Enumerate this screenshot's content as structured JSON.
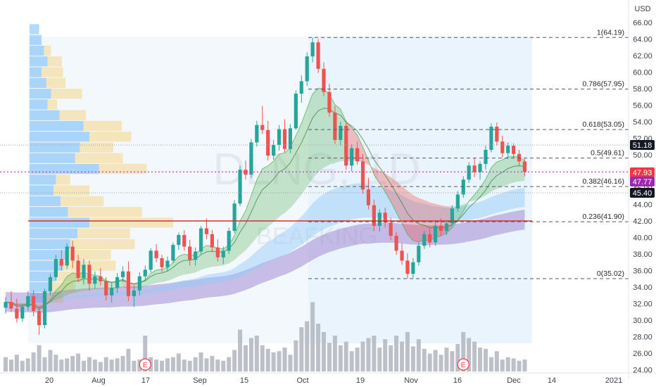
{
  "chart_data": {
    "type": "candlestick",
    "currency": "USD",
    "y_axis": {
      "range": [
        24,
        66.5
      ],
      "ticks": [
        24,
        26,
        28,
        30,
        32,
        34,
        36,
        38,
        40,
        42,
        44,
        46,
        48,
        50,
        52,
        54,
        56,
        58,
        60,
        62,
        64,
        66
      ]
    },
    "x_axis_labels": [
      "20",
      "Aug",
      "17",
      "Sep",
      "15",
      "Oct",
      "19",
      "Nov",
      "16",
      "Dec",
      "14",
      "2021"
    ],
    "price_tags": [
      {
        "value": 51.18,
        "text": "51.18",
        "color": "#131722"
      },
      {
        "value": 47.93,
        "text": "47.93",
        "color": "#f23645"
      },
      {
        "value": 47.77,
        "text": "47.77",
        "color": "#9c27b0"
      },
      {
        "value": 45.4,
        "text": "45.40",
        "color": "#131722"
      }
    ],
    "fibonacci": [
      {
        "level": "1",
        "price": 64.19,
        "label": "1(64.19)"
      },
      {
        "level": "0.786",
        "price": 57.95,
        "label": "0.786(57.95)"
      },
      {
        "level": "0.618",
        "price": 53.05,
        "label": "0.618(53.05)"
      },
      {
        "level": "0.5",
        "price": 49.61,
        "label": "0.5(49.61)"
      },
      {
        "level": "0.382",
        "price": 46.16,
        "label": "0.382(46.16)"
      },
      {
        "level": "0.236",
        "price": 41.9,
        "label": "0.236(41.90)"
      },
      {
        "level": "0",
        "price": 35.02,
        "label": "0(35.02)"
      }
    ],
    "support_line": 42.0,
    "earnings_markers": [
      {
        "label": "E",
        "index": 25
      },
      {
        "label": "E",
        "index": 82
      }
    ],
    "candles": [
      [
        31.5,
        32.8,
        30.8,
        32.2
      ],
      [
        32.2,
        33.5,
        31.0,
        31.4
      ],
      [
        31.4,
        32.6,
        29.7,
        30.2
      ],
      [
        30.2,
        32.0,
        29.8,
        31.6
      ],
      [
        31.6,
        33.5,
        31.1,
        32.9
      ],
      [
        32.9,
        33.6,
        30.5,
        31.1
      ],
      [
        31.1,
        31.6,
        28.2,
        29.4
      ],
      [
        29.4,
        33.8,
        29.0,
        33.5
      ],
      [
        33.5,
        35.6,
        33.0,
        35.2
      ],
      [
        35.2,
        37.9,
        34.8,
        37.4
      ],
      [
        37.4,
        38.5,
        36.0,
        36.6
      ],
      [
        36.6,
        39.3,
        36.2,
        38.9
      ],
      [
        38.9,
        39.6,
        36.3,
        37.2
      ],
      [
        37.2,
        37.9,
        34.6,
        35.1
      ],
      [
        35.1,
        37.4,
        34.3,
        36.7
      ],
      [
        36.7,
        37.2,
        33.6,
        34.4
      ],
      [
        34.4,
        35.9,
        33.8,
        35.3
      ],
      [
        35.3,
        36.3,
        34.2,
        34.7
      ],
      [
        34.7,
        35.2,
        32.4,
        33.0
      ],
      [
        33.0,
        34.5,
        32.1,
        33.9
      ],
      [
        33.9,
        35.7,
        33.3,
        35.2
      ],
      [
        35.2,
        36.5,
        34.6,
        35.9
      ],
      [
        35.9,
        37.1,
        32.3,
        32.9
      ],
      [
        32.9,
        34.2,
        31.6,
        33.6
      ],
      [
        33.6,
        35.8,
        33.0,
        35.3
      ],
      [
        35.3,
        36.6,
        34.7,
        36.1
      ],
      [
        36.1,
        38.7,
        35.8,
        38.4
      ],
      [
        38.4,
        39.2,
        37.0,
        37.5
      ],
      [
        37.5,
        37.9,
        35.8,
        36.4
      ],
      [
        36.4,
        37.7,
        35.9,
        37.2
      ],
      [
        37.2,
        39.4,
        36.9,
        39.1
      ],
      [
        39.1,
        40.6,
        38.5,
        40.3
      ],
      [
        40.3,
        40.9,
        38.4,
        38.9
      ],
      [
        38.9,
        39.7,
        36.6,
        37.3
      ],
      [
        37.3,
        38.8,
        36.6,
        38.3
      ],
      [
        38.3,
        41.4,
        38.0,
        41.1
      ],
      [
        41.1,
        42.3,
        39.8,
        40.4
      ],
      [
        40.4,
        40.9,
        38.2,
        38.8
      ],
      [
        38.8,
        39.8,
        37.1,
        37.6
      ],
      [
        37.6,
        38.9,
        36.8,
        38.4
      ],
      [
        38.4,
        41.2,
        38.0,
        40.8
      ],
      [
        40.8,
        44.5,
        40.5,
        44.1
      ],
      [
        44.1,
        48.7,
        43.8,
        48.2
      ],
      [
        48.2,
        49.3,
        47.0,
        47.6
      ],
      [
        47.6,
        51.9,
        47.2,
        51.5
      ],
      [
        51.5,
        54.1,
        51.0,
        53.6
      ],
      [
        53.6,
        55.9,
        52.5,
        53.0
      ],
      [
        53.0,
        54.1,
        49.3,
        49.9
      ],
      [
        49.9,
        51.8,
        49.4,
        51.2
      ],
      [
        51.2,
        53.6,
        50.5,
        53.1
      ],
      [
        53.1,
        54.3,
        50.3,
        50.7
      ],
      [
        50.7,
        53.7,
        50.2,
        53.2
      ],
      [
        53.2,
        57.8,
        53.0,
        57.4
      ],
      [
        57.4,
        59.6,
        56.3,
        58.9
      ],
      [
        58.9,
        62.4,
        58.3,
        61.9
      ],
      [
        61.9,
        64.19,
        61.2,
        63.6
      ],
      [
        63.6,
        64.0,
        59.9,
        60.4
      ],
      [
        60.4,
        61.2,
        57.1,
        57.6
      ],
      [
        57.6,
        58.6,
        54.6,
        55.1
      ],
      [
        55.1,
        55.9,
        51.3,
        51.8
      ],
      [
        51.8,
        54.0,
        51.1,
        53.5
      ],
      [
        53.5,
        54.1,
        48.2,
        48.7
      ],
      [
        48.7,
        51.3,
        48.0,
        50.8
      ],
      [
        50.8,
        51.6,
        48.8,
        49.2
      ],
      [
        49.2,
        50.1,
        45.3,
        45.8
      ],
      [
        45.8,
        47.2,
        43.4,
        43.9
      ],
      [
        43.9,
        44.6,
        40.8,
        41.4
      ],
      [
        41.4,
        43.4,
        40.7,
        43.0
      ],
      [
        43.0,
        43.6,
        41.2,
        41.8
      ],
      [
        41.8,
        42.4,
        39.7,
        40.2
      ],
      [
        40.2,
        40.7,
        37.9,
        38.4
      ],
      [
        38.4,
        39.3,
        36.7,
        37.2
      ],
      [
        37.2,
        38.1,
        35.02,
        35.6
      ],
      [
        35.6,
        37.5,
        35.1,
        37.0
      ],
      [
        37.0,
        39.4,
        36.6,
        39.0
      ],
      [
        39.0,
        40.8,
        38.6,
        40.4
      ],
      [
        40.4,
        41.2,
        38.8,
        39.4
      ],
      [
        39.4,
        41.8,
        39.0,
        41.4
      ],
      [
        41.4,
        42.3,
        40.2,
        40.8
      ],
      [
        40.8,
        42.1,
        40.3,
        41.7
      ],
      [
        41.7,
        43.9,
        41.4,
        43.5
      ],
      [
        43.5,
        45.6,
        43.1,
        45.2
      ],
      [
        45.2,
        47.4,
        44.8,
        47.0
      ],
      [
        47.0,
        49.1,
        46.6,
        48.7
      ],
      [
        48.7,
        49.6,
        47.3,
        47.9
      ],
      [
        47.9,
        49.2,
        47.0,
        48.9
      ],
      [
        48.9,
        51.1,
        48.2,
        50.6
      ],
      [
        50.6,
        53.8,
        50.3,
        53.4
      ],
      [
        53.4,
        53.9,
        51.1,
        51.6
      ],
      [
        51.6,
        52.3,
        49.7,
        50.2
      ],
      [
        50.2,
        51.5,
        49.5,
        51.1
      ],
      [
        51.1,
        51.4,
        49.6,
        50.1
      ],
      [
        50.1,
        50.6,
        48.6,
        49.2
      ],
      [
        49.2,
        49.5,
        47.4,
        47.93
      ]
    ],
    "volume_relative": [
      0.12,
      0.1,
      0.14,
      0.09,
      0.11,
      0.16,
      0.22,
      0.12,
      0.18,
      0.14,
      0.1,
      0.11,
      0.13,
      0.15,
      0.09,
      0.12,
      0.1,
      0.08,
      0.12,
      0.1,
      0.11,
      0.13,
      0.19,
      0.09,
      0.1,
      0.3,
      0.12,
      0.1,
      0.09,
      0.11,
      0.12,
      0.15,
      0.1,
      0.09,
      0.12,
      0.16,
      0.11,
      0.13,
      0.1,
      0.09,
      0.12,
      0.18,
      0.35,
      0.22,
      0.28,
      0.3,
      0.22,
      0.19,
      0.16,
      0.17,
      0.2,
      0.14,
      0.26,
      0.37,
      0.42,
      0.58,
      0.4,
      0.33,
      0.24,
      0.3,
      0.22,
      0.25,
      0.17,
      0.2,
      0.25,
      0.28,
      0.3,
      0.2,
      0.27,
      0.22,
      0.3,
      0.25,
      0.33,
      0.21,
      0.27,
      0.19,
      0.15,
      0.18,
      0.14,
      0.2,
      0.17,
      0.23,
      0.33,
      0.28,
      0.25,
      0.2,
      0.19,
      0.12,
      0.17,
      0.1,
      0.12,
      0.11,
      0.09,
      0.1
    ],
    "volume_profile": [
      {
        "y": [
          64.5,
          65.8
        ],
        "blue": 0.08,
        "yellow": 0.0
      },
      {
        "y": [
          63.2,
          64.5
        ],
        "blue": 0.1,
        "yellow": 0.0
      },
      {
        "y": [
          61.9,
          63.2
        ],
        "blue": 0.12,
        "yellow": 0.06
      },
      {
        "y": [
          60.6,
          61.9
        ],
        "blue": 0.15,
        "yellow": 0.12
      },
      {
        "y": [
          59.3,
          60.6
        ],
        "blue": 0.1,
        "yellow": 0.18
      },
      {
        "y": [
          58.0,
          59.3
        ],
        "blue": 0.14,
        "yellow": 0.16
      },
      {
        "y": [
          56.7,
          58.0
        ],
        "blue": 0.18,
        "yellow": 0.26
      },
      {
        "y": [
          55.4,
          56.7
        ],
        "blue": 0.15,
        "yellow": 0.08
      },
      {
        "y": [
          54.1,
          55.4
        ],
        "blue": 0.25,
        "yellow": 0.22
      },
      {
        "y": [
          52.8,
          54.1
        ],
        "blue": 0.45,
        "yellow": 0.32
      },
      {
        "y": [
          51.5,
          52.8
        ],
        "blue": 0.5,
        "yellow": 0.35
      },
      {
        "y": [
          50.2,
          51.5
        ],
        "blue": 0.42,
        "yellow": 0.28
      },
      {
        "y": [
          48.9,
          50.2
        ],
        "blue": 0.38,
        "yellow": 0.4
      },
      {
        "y": [
          47.6,
          48.9
        ],
        "blue": 0.58,
        "yellow": 0.4
      },
      {
        "y": [
          46.3,
          47.6
        ],
        "blue": 0.22,
        "yellow": 0.12
      },
      {
        "y": [
          45.0,
          46.3
        ],
        "blue": 0.2,
        "yellow": 0.3
      },
      {
        "y": [
          43.7,
          45.0
        ],
        "blue": 0.26,
        "yellow": 0.36
      },
      {
        "y": [
          42.4,
          43.7
        ],
        "blue": 0.32,
        "yellow": 0.62
      },
      {
        "y": [
          41.1,
          42.4
        ],
        "blue": 0.5,
        "yellow": 0.7
      },
      {
        "y": [
          39.8,
          41.1
        ],
        "blue": 0.4,
        "yellow": 0.44
      },
      {
        "y": [
          38.5,
          39.8
        ],
        "blue": 0.34,
        "yellow": 0.54
      },
      {
        "y": [
          37.2,
          38.5
        ],
        "blue": 0.3,
        "yellow": 0.38
      },
      {
        "y": [
          35.9,
          37.2
        ],
        "blue": 0.28,
        "yellow": 0.44
      },
      {
        "y": [
          34.6,
          35.9
        ],
        "blue": 0.22,
        "yellow": 0.24
      },
      {
        "y": [
          33.3,
          34.6
        ],
        "blue": 0.18,
        "yellow": 0.2
      },
      {
        "y": [
          32.0,
          33.3
        ],
        "blue": 0.12,
        "yellow": 0.16
      }
    ],
    "colors": {
      "up": "#26a69a",
      "down": "#ef5350",
      "volume": "#b2b5be",
      "fib": "#545862",
      "support": "#d32f2f",
      "crosshair": "#c026d3",
      "vp_blue": "#2196f3",
      "vp_yellow": "#f5c242",
      "ema_green": "#66bb6a",
      "ema_red": "#ef5350",
      "ema_blue": "#90caf9",
      "ema_purple": "#9575cd"
    },
    "watermark": [
      "DLNG, 1D",
      "BEAFKING"
    ]
  }
}
